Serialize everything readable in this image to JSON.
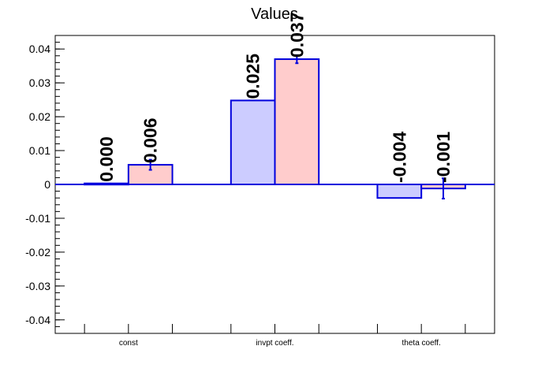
{
  "chart_data": {
    "type": "bar",
    "title": "Values",
    "xlabel": "",
    "ylabel": "",
    "categories": [
      "const",
      "invpt coeff.",
      "theta coeff."
    ],
    "ylim": [
      -0.044,
      0.044
    ],
    "yticks": [
      "-0.04",
      "-0.03",
      "-0.02",
      "-0.01",
      "0",
      "0.01",
      "0.02",
      "0.03",
      "0.04"
    ],
    "ytick_values": [
      -0.04,
      -0.03,
      -0.02,
      -0.01,
      0,
      0.01,
      0.02,
      0.03,
      0.04
    ],
    "grid": false,
    "legend": "none",
    "series": [
      {
        "values": [
          0.0003,
          0.0248,
          -0.004
        ],
        "errors": [
          0.0,
          0.0,
          0.0
        ],
        "labels": [
          "0.000",
          "0.025",
          "-0.004"
        ],
        "fill": "#ccccff",
        "edge": "#0000dd"
      },
      {
        "values": [
          0.0058,
          0.037,
          -0.0012
        ],
        "errors": [
          0.0015,
          0.0012,
          0.003
        ],
        "labels": [
          "0.006",
          "0.037",
          "-0.001"
        ],
        "fill": "#ffcccc",
        "edge": "#0000dd"
      }
    ]
  }
}
